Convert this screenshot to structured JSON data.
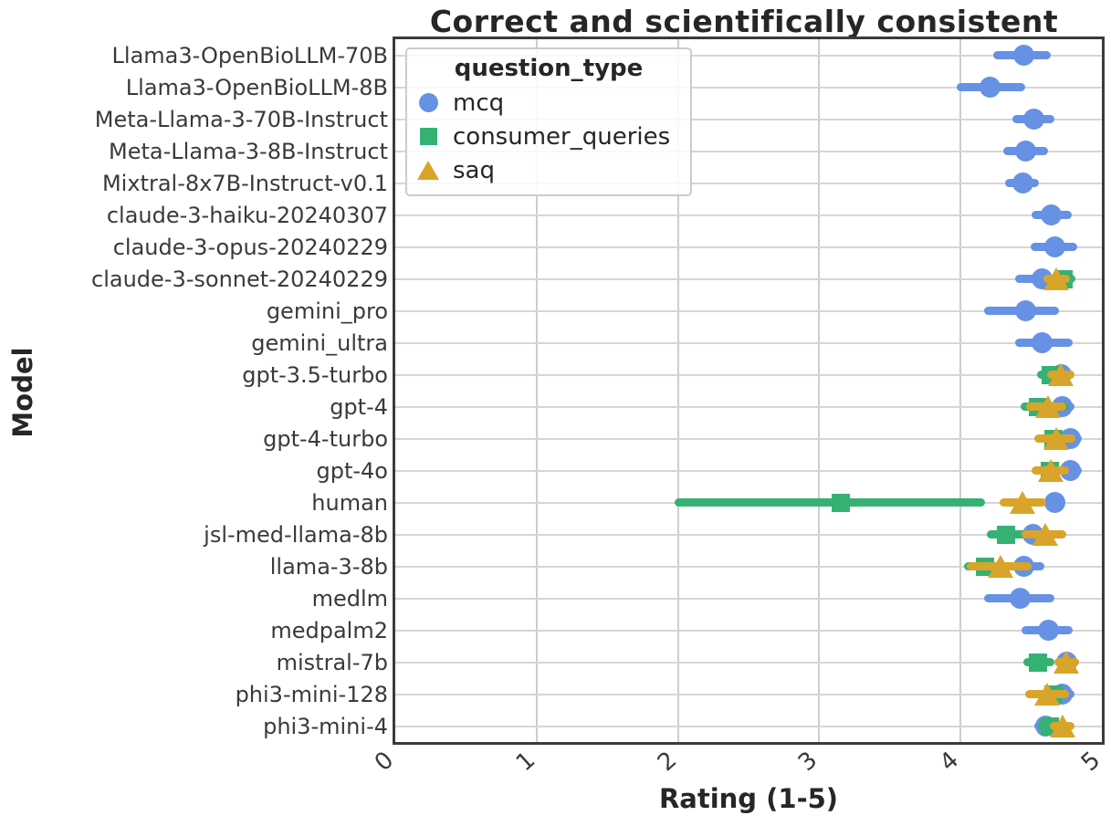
{
  "title": "Correct and scientifically consistent",
  "legend": {
    "title": "question_type",
    "items": [
      {
        "label": "mcq",
        "marker": "circle",
        "color": "#6691e4"
      },
      {
        "label": "consumer_queries",
        "marker": "square",
        "color": "#36b174"
      },
      {
        "label": "saq",
        "marker": "triangle",
        "color": "#d9a42a"
      }
    ]
  },
  "axes": {
    "xlabel": "Rating (1-5)",
    "ylabel": "Model",
    "xticks": [
      "0",
      "1",
      "2",
      "3",
      "4",
      "5"
    ]
  },
  "chart_data": {
    "type": "scatter",
    "subtype": "pointplot-with-error-bars",
    "title": "Correct and scientifically consistent",
    "xlabel": "Rating (1-5)",
    "ylabel": "Model",
    "xlim": [
      0,
      5
    ],
    "xticks": [
      0,
      1,
      2,
      3,
      4,
      5
    ],
    "grid": true,
    "legend_position": "upper-left",
    "series_order": [
      "mcq",
      "consumer_queries",
      "saq"
    ],
    "rows": [
      {
        "model": "Llama3-OpenBioLLM-70B",
        "mcq": {
          "value": 4.45,
          "ci": [
            4.26,
            4.61
          ]
        },
        "consumer_queries": null,
        "saq": null
      },
      {
        "model": "Llama3-OpenBioLLM-8B",
        "mcq": {
          "value": 4.21,
          "ci": [
            4.0,
            4.43
          ]
        },
        "consumer_queries": null,
        "saq": null
      },
      {
        "model": "Meta-Llama-3-70B-Instruct",
        "mcq": {
          "value": 4.52,
          "ci": [
            4.39,
            4.64
          ]
        },
        "consumer_queries": null,
        "saq": null
      },
      {
        "model": "Meta-Llama-3-8B-Instruct",
        "mcq": {
          "value": 4.46,
          "ci": [
            4.33,
            4.59
          ]
        },
        "consumer_queries": null,
        "saq": null
      },
      {
        "model": "Mixtral-8x7B-Instruct-v0.1",
        "mcq": {
          "value": 4.44,
          "ci": [
            4.34,
            4.53
          ]
        },
        "consumer_queries": null,
        "saq": null
      },
      {
        "model": "claude-3-haiku-20240307",
        "mcq": {
          "value": 4.64,
          "ci": [
            4.53,
            4.76
          ]
        },
        "consumer_queries": null,
        "saq": null
      },
      {
        "model": "claude-3-opus-20240229",
        "mcq": {
          "value": 4.67,
          "ci": [
            4.52,
            4.8
          ]
        },
        "consumer_queries": null,
        "saq": null
      },
      {
        "model": "claude-3-sonnet-20240229",
        "mcq": {
          "value": 4.58,
          "ci": [
            4.41,
            4.73
          ]
        },
        "consumer_queries": {
          "value": 4.73,
          "ci": [
            4.67,
            4.79
          ]
        },
        "saq": {
          "value": 4.68,
          "ci": [
            4.61,
            4.75
          ]
        }
      },
      {
        "model": "gemini_pro",
        "mcq": {
          "value": 4.46,
          "ci": [
            4.19,
            4.67
          ]
        },
        "consumer_queries": null,
        "saq": null
      },
      {
        "model": "gemini_ultra",
        "mcq": {
          "value": 4.58,
          "ci": [
            4.41,
            4.77
          ]
        },
        "consumer_queries": null,
        "saq": null
      },
      {
        "model": "gpt-3.5-turbo",
        "mcq": {
          "value": 4.71,
          "ci": [
            4.65,
            4.77
          ]
        },
        "consumer_queries": {
          "value": 4.64,
          "ci": [
            4.57,
            4.72
          ]
        },
        "saq": {
          "value": 4.71,
          "ci": [
            4.64,
            4.78
          ]
        }
      },
      {
        "model": "gpt-4",
        "mcq": {
          "value": 4.72,
          "ci": [
            4.66,
            4.78
          ]
        },
        "consumer_queries": {
          "value": 4.55,
          "ci": [
            4.45,
            4.74
          ]
        },
        "saq": {
          "value": 4.62,
          "ci": [
            4.49,
            4.72
          ]
        }
      },
      {
        "model": "gpt-4-turbo",
        "mcq": {
          "value": 4.78,
          "ci": [
            4.73,
            4.83
          ]
        },
        "consumer_queries": {
          "value": 4.66,
          "ci": [
            4.59,
            4.73
          ]
        },
        "saq": {
          "value": 4.68,
          "ci": [
            4.55,
            4.79
          ]
        }
      },
      {
        "model": "gpt-4o",
        "mcq": {
          "value": 4.78,
          "ci": [
            4.73,
            4.83
          ]
        },
        "consumer_queries": {
          "value": 4.63,
          "ci": [
            4.57,
            4.7
          ]
        },
        "saq": {
          "value": 4.64,
          "ci": [
            4.53,
            4.74
          ]
        }
      },
      {
        "model": "human",
        "mcq": {
          "value": 4.67,
          "ci": [
            4.63,
            4.71
          ]
        },
        "consumer_queries": {
          "value": 3.15,
          "ci": [
            2.0,
            4.15
          ]
        },
        "saq": {
          "value": 4.44,
          "ci": [
            4.3,
            4.58
          ]
        }
      },
      {
        "model": "jsl-med-llama-8b",
        "mcq": {
          "value": 4.51,
          "ci": [
            4.44,
            4.58
          ]
        },
        "consumer_queries": {
          "value": 4.32,
          "ci": [
            4.21,
            4.43
          ]
        },
        "saq": {
          "value": 4.6,
          "ci": [
            4.46,
            4.72
          ]
        }
      },
      {
        "model": "llama-3-8b",
        "mcq": {
          "value": 4.45,
          "ci": [
            4.36,
            4.57
          ]
        },
        "consumer_queries": {
          "value": 4.17,
          "ci": [
            4.05,
            4.39
          ]
        },
        "saq": {
          "value": 4.28,
          "ci": [
            4.07,
            4.48
          ]
        }
      },
      {
        "model": "medlm",
        "mcq": {
          "value": 4.42,
          "ci": [
            4.19,
            4.64
          ]
        },
        "consumer_queries": null,
        "saq": null
      },
      {
        "model": "medpalm2",
        "mcq": {
          "value": 4.62,
          "ci": [
            4.46,
            4.77
          ]
        },
        "consumer_queries": null,
        "saq": null
      },
      {
        "model": "mistral-7b",
        "mcq": {
          "value": 4.75,
          "ci": [
            4.7,
            4.8
          ]
        },
        "consumer_queries": {
          "value": 4.55,
          "ci": [
            4.47,
            4.64
          ]
        },
        "saq": {
          "value": 4.75,
          "ci": [
            4.69,
            4.81
          ]
        }
      },
      {
        "model": "phi3-mini-128",
        "mcq": {
          "value": 4.72,
          "ci": [
            4.66,
            4.78
          ]
        },
        "consumer_queries": {
          "value": 4.66,
          "ci": [
            4.6,
            4.72
          ]
        },
        "saq": {
          "value": 4.61,
          "ci": [
            4.48,
            4.74
          ]
        }
      },
      {
        "model": "phi3-mini-4",
        "mcq": {
          "value": 4.6,
          "ci": [
            4.55,
            4.66
          ]
        },
        "consumer_queries": {
          "value": 4.63,
          "ci": [
            4.57,
            4.69
          ]
        },
        "saq": {
          "value": 4.72,
          "ci": [
            4.66,
            4.78
          ]
        }
      }
    ]
  },
  "colors": {
    "mcq": "#6691e4",
    "consumer_queries": "#36b174",
    "saq": "#d9a42a",
    "gridline": "#cdcdcd",
    "spine": "#3b3b3b",
    "text": "#262626"
  }
}
